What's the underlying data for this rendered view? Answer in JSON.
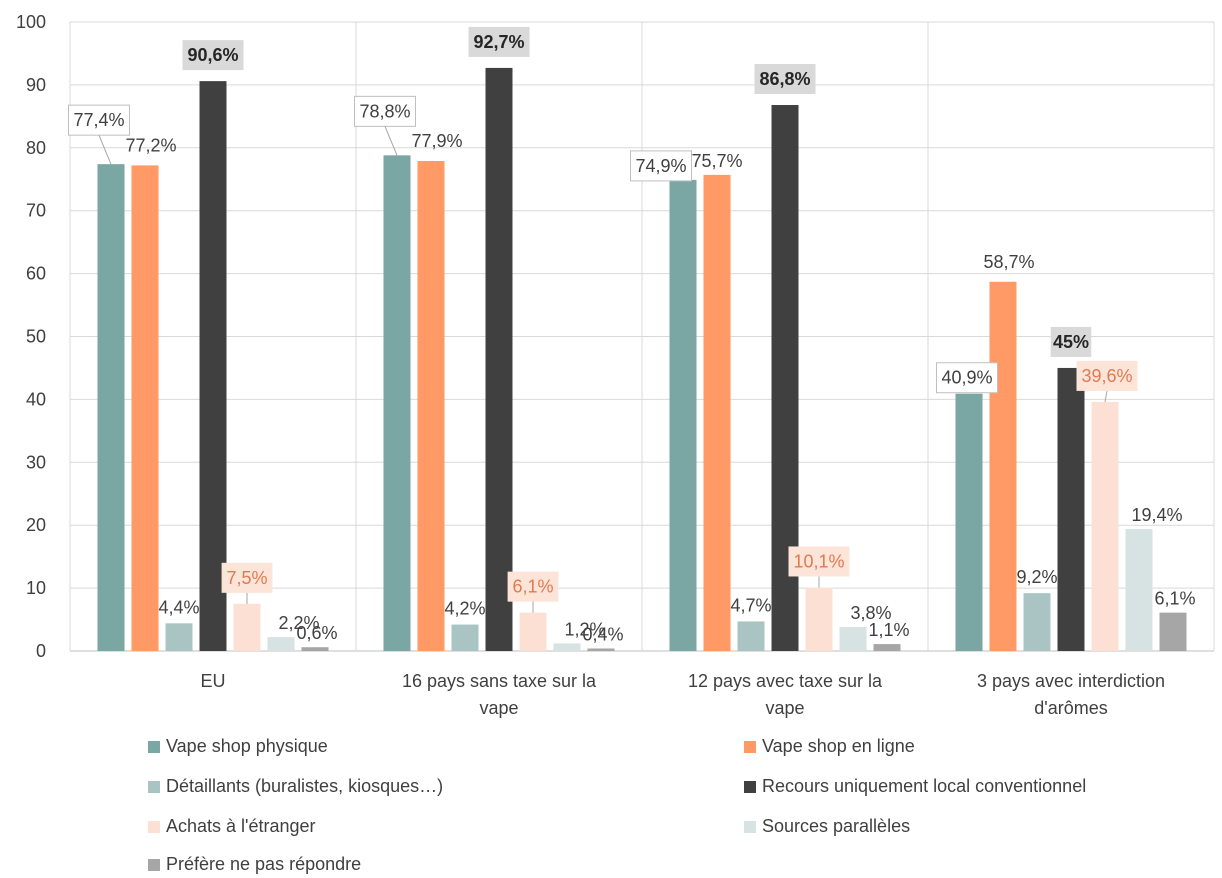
{
  "chart_data": {
    "type": "bar",
    "categories": [
      [
        "EU"
      ],
      [
        "16 pays sans taxe sur la",
        "vape"
      ],
      [
        "12 pays avec taxe sur la",
        "vape"
      ],
      [
        "3 pays avec interdiction",
        "d'arômes"
      ]
    ],
    "ylim": [
      0,
      100
    ],
    "yticks": [
      "0",
      "10",
      "20",
      "30",
      "40",
      "50",
      "60",
      "70",
      "80",
      "90",
      "100"
    ],
    "grid": true,
    "legend_position": "bottom",
    "series": [
      {
        "name": "Vape shop physique",
        "color": "#7aa6a3",
        "values": [
          77.4,
          78.8,
          74.9,
          40.9
        ],
        "labels": [
          "77,4%",
          "78,8%",
          "74,9%",
          "40,9%"
        ],
        "label_style": "boxed"
      },
      {
        "name": "Vape shop en ligne",
        "color": "#ff9966",
        "values": [
          77.2,
          77.9,
          75.7,
          58.7
        ],
        "labels": [
          "77,2%",
          "77,9%",
          "75,7%",
          "58,7%"
        ],
        "label_style": "plain"
      },
      {
        "name": "Détaillants (buralistes, kiosques…)",
        "color": "#a9c4c2",
        "values": [
          4.4,
          4.2,
          4.7,
          9.2
        ],
        "labels": [
          "4,4%",
          "4,2%",
          "4,7%",
          "9,2%"
        ],
        "label_style": "plain"
      },
      {
        "name": "Recours uniquement local conventionnel",
        "color": "#404040",
        "values": [
          90.6,
          92.7,
          86.8,
          45
        ],
        "labels": [
          "90,6%",
          "92,7%",
          "86,8%",
          "45%"
        ],
        "label_style": "bold-gray"
      },
      {
        "name": "Achats à l'étranger",
        "color": "#fde0d4",
        "values": [
          7.5,
          6.1,
          10.1,
          39.6
        ],
        "labels": [
          "7,5%",
          "6,1%",
          "10,1%",
          "39,6%"
        ],
        "label_style": "peach"
      },
      {
        "name": "Sources parallèles",
        "color": "#d6e3e2",
        "values": [
          2.2,
          1.2,
          3.8,
          19.4
        ],
        "labels": [
          "2,2%",
          "1,2%",
          "3,8%",
          "19,4%"
        ],
        "label_style": "plain"
      },
      {
        "name": "Préfère ne pas répondre",
        "color": "#a6a6a6",
        "values": [
          0.6,
          0.4,
          1.1,
          6.1
        ],
        "labels": [
          "0,6%",
          "0,4%",
          "1,1%",
          "6,1%"
        ],
        "label_style": "plain"
      }
    ]
  }
}
